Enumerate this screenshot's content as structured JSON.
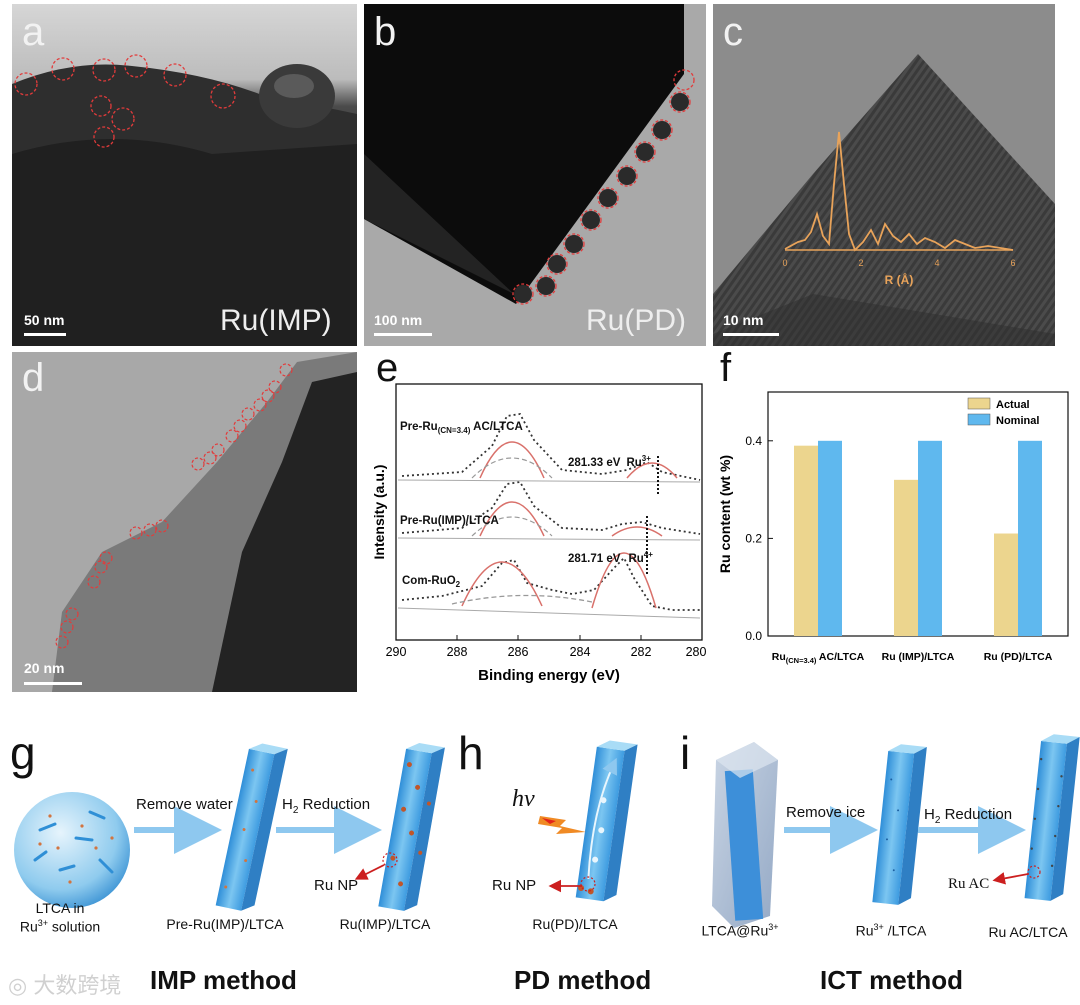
{
  "panels": {
    "a": {
      "label": "a",
      "scale": "50 nm",
      "sample": "Ru(IMP)"
    },
    "b": {
      "label": "b",
      "scale": "100 nm",
      "sample": "Ru(PD)"
    },
    "c": {
      "label": "c",
      "scale": "10 nm",
      "inset_xlabel": "R (Å)",
      "inset_ticks": [
        "0",
        "2",
        "4",
        "6"
      ]
    },
    "d": {
      "label": "d",
      "scale": "20 nm"
    },
    "e": {
      "label": "e"
    },
    "f": {
      "label": "f"
    },
    "g": {
      "label": "g"
    },
    "h": {
      "label": "h"
    },
    "i": {
      "label": "i"
    }
  },
  "chart_data": [
    {
      "type": "line",
      "panel": "e",
      "xlabel": "Binding energy (eV)",
      "ylabel": "Intensity (a.u.)",
      "xlim": [
        290,
        280
      ],
      "x_ticks": [
        "290",
        "288",
        "286",
        "284",
        "282",
        "280"
      ],
      "series": [
        {
          "name": "Pre-Ru",
          "name_sub": "(CN=3.4)",
          "name_suffix": " AC/LTCA",
          "peak_eV": 281.33,
          "annotation": "281.33 eV",
          "species": "Ru",
          "species_sup": "3+"
        },
        {
          "name": "Pre-Ru(IMP)/LTCA"
        },
        {
          "name": "Com-RuO",
          "name_sub": "2",
          "peak_eV": 281.71,
          "annotation": "281.71 eV",
          "species": "Ru",
          "species_sup": "4+"
        }
      ]
    },
    {
      "type": "bar",
      "panel": "f",
      "ylabel": "Ru content (wt %)",
      "ylim": [
        0,
        0.5
      ],
      "y_ticks": [
        "0.0",
        "0.2",
        "0.4"
      ],
      "categories": [
        {
          "main": "Ru",
          "sub": "(CN=3.4)",
          "suffix": " AC/LTCA"
        },
        {
          "main": "Ru (IMP)/LTCA",
          "sub": "",
          "suffix": ""
        },
        {
          "main": "Ru (PD)/LTCA",
          "sub": "",
          "suffix": ""
        }
      ],
      "series": [
        {
          "name": "Actual",
          "color": "#ecd58e",
          "values": [
            0.39,
            0.32,
            0.21
          ]
        },
        {
          "name": "Nominal",
          "color": "#5fb8ee",
          "values": [
            0.4,
            0.4,
            0.4
          ]
        }
      ]
    }
  ],
  "schematic": {
    "g": {
      "step1_caption_line1": "LTCA in",
      "step1_caption_line2_pre": "Ru",
      "step1_caption_line2_sup": "3+",
      "step1_caption_line2_post": " solution",
      "arrow1": "Remove water",
      "step2_caption": "Pre-Ru(IMP)/LTCA",
      "arrow2_pre": "H",
      "arrow2_sub": "2",
      "arrow2_post": " Reduction",
      "np_label": "Ru NP",
      "step3_caption": "Ru(IMP)/LTCA",
      "method": "IMP method"
    },
    "h": {
      "hv": "hν",
      "np_label": "Ru NP",
      "caption": "Ru(PD)/LTCA",
      "method": "PD method"
    },
    "i": {
      "step1_caption_pre": "LTCA@Ru",
      "step1_caption_sup": "3+",
      "arrow1": "Remove ice",
      "step2_caption_pre": "Ru",
      "step2_caption_sup": "3+",
      "step2_caption_post": " /LTCA",
      "arrow2_pre": "H",
      "arrow2_sub": "2",
      "arrow2_post": " Reduction",
      "ac_label": "Ru AC",
      "step3_caption": "Ru AC/LTCA",
      "method": "ICT method"
    }
  },
  "watermark": "大数跨境"
}
